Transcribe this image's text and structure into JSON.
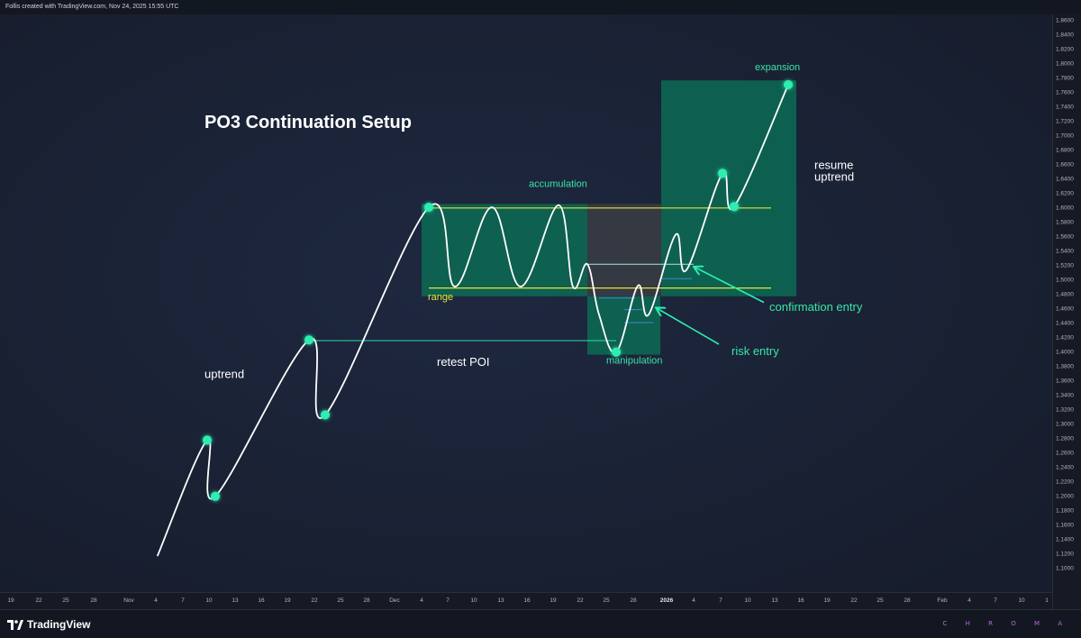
{
  "header": {
    "attribution": "Follis created with TradingView.com, Nov 24, 2025 15:55 UTC"
  },
  "footer": {
    "logo_text": "TradingView",
    "watermark": "C H R O M A"
  },
  "colors": {
    "background": "#1b2336",
    "line": "#ffffff",
    "accent": "#2dedb0",
    "zone_fill": "#0b6e55",
    "range_line": "#e6e632",
    "label_green": "#39e6a8",
    "label_white": "#ffffff"
  },
  "chart_data": {
    "type": "line",
    "title": "PO3 Continuation Setup",
    "y_axis": {
      "ticks": [
        "1.8600",
        "1.8400",
        "1.8200",
        "1.8000",
        "1.7800",
        "1.7600",
        "1.7400",
        "1.7200",
        "1.7000",
        "1.6800",
        "1.6600",
        "1.6400",
        "1.6200",
        "1.6000",
        "1.5800",
        "1.5600",
        "1.5400",
        "1.5200",
        "1.5000",
        "1.4800",
        "1.4600",
        "1.4400",
        "1.4200",
        "1.4000",
        "1.3800",
        "1.3600",
        "1.3400",
        "1.3200",
        "1.3000",
        "1.2800",
        "1.2600",
        "1.2400",
        "1.2200",
        "1.2000",
        "1.1800",
        "1.1600",
        "1.1400",
        "1.1200",
        "1.1000"
      ],
      "range": [
        1.1,
        1.86
      ]
    },
    "x_axis": {
      "ticks": [
        {
          "label": "19",
          "x": 12
        },
        {
          "label": "22",
          "x": 43
        },
        {
          "label": "25",
          "x": 73
        },
        {
          "label": "28",
          "x": 104
        },
        {
          "label": "Nov",
          "x": 143
        },
        {
          "label": "4",
          "x": 173
        },
        {
          "label": "7",
          "x": 203
        },
        {
          "label": "10",
          "x": 232
        },
        {
          "label": "13",
          "x": 261
        },
        {
          "label": "16",
          "x": 290
        },
        {
          "label": "19",
          "x": 319
        },
        {
          "label": "22",
          "x": 349
        },
        {
          "label": "25",
          "x": 378
        },
        {
          "label": "28",
          "x": 407
        },
        {
          "label": "Dec",
          "x": 438
        },
        {
          "label": "4",
          "x": 468
        },
        {
          "label": "7",
          "x": 497
        },
        {
          "label": "10",
          "x": 526
        },
        {
          "label": "13",
          "x": 556
        },
        {
          "label": "16",
          "x": 585
        },
        {
          "label": "19",
          "x": 614
        },
        {
          "label": "22",
          "x": 644
        },
        {
          "label": "25",
          "x": 673
        },
        {
          "label": "28",
          "x": 703
        },
        {
          "label": "2026",
          "x": 740,
          "bold": true
        },
        {
          "label": "4",
          "x": 770
        },
        {
          "label": "7",
          "x": 800
        },
        {
          "label": "10",
          "x": 830
        },
        {
          "label": "13",
          "x": 860
        },
        {
          "label": "16",
          "x": 889
        },
        {
          "label": "19",
          "x": 918
        },
        {
          "label": "22",
          "x": 948
        },
        {
          "label": "25",
          "x": 977
        },
        {
          "label": "28",
          "x": 1007
        },
        {
          "label": "Feb",
          "x": 1046
        },
        {
          "label": "4",
          "x": 1076
        },
        {
          "label": "7",
          "x": 1105
        },
        {
          "label": "10",
          "x": 1134
        },
        {
          "label": "1",
          "x": 1162
        }
      ]
    },
    "price_path": [
      [
        175,
        1.117
      ],
      [
        230,
        1.277
      ],
      [
        239,
        1.199
      ],
      [
        343,
        1.416
      ],
      [
        361,
        1.312
      ],
      [
        476,
        1.6
      ],
      [
        505,
        1.49
      ],
      [
        546,
        1.6
      ],
      [
        578,
        1.49
      ],
      [
        620,
        1.603
      ],
      [
        636,
        1.49
      ],
      [
        652,
        1.521
      ],
      [
        665,
        1.451
      ],
      [
        684,
        1.399
      ],
      [
        708,
        1.491
      ],
      [
        720,
        1.451
      ],
      [
        750,
        1.562
      ],
      [
        762,
        1.513
      ],
      [
        802,
        1.647
      ],
      [
        815,
        1.601
      ],
      [
        875,
        1.77
      ]
    ],
    "key_points": [
      {
        "x": 230,
        "y": 1.277
      },
      {
        "x": 239,
        "y": 1.199
      },
      {
        "x": 343,
        "y": 1.416
      },
      {
        "x": 361,
        "y": 1.312
      },
      {
        "x": 476,
        "y": 1.6
      },
      {
        "x": 684,
        "y": 1.399
      },
      {
        "x": 802,
        "y": 1.647
      },
      {
        "x": 815,
        "y": 1.601
      },
      {
        "x": 875,
        "y": 1.77
      }
    ],
    "zones": [
      {
        "name": "accumulation",
        "x1": 468,
        "x2": 652,
        "y1": 1.6045,
        "y2": 1.4765,
        "shade": "green"
      },
      {
        "name": "consolidation",
        "x1": 652,
        "x2": 734,
        "y1": 1.6045,
        "y2": 1.4765,
        "shade": "gray"
      },
      {
        "name": "manipulation",
        "x1": 652,
        "x2": 733,
        "y1": 1.4765,
        "y2": 1.3955,
        "shade": "green"
      },
      {
        "name": "expansion",
        "x1": 734,
        "x2": 884,
        "y1": 1.776,
        "y2": 1.4765,
        "shade": "green"
      }
    ],
    "range_lines": [
      {
        "x1": 476,
        "x2": 856,
        "y": 1.599
      },
      {
        "x1": 476,
        "x2": 856,
        "y": 1.488
      }
    ],
    "retest_poi_line": {
      "x1": 343,
      "x2": 684,
      "y": 1.415
    },
    "entry_lines": [
      {
        "x1": 652,
        "x2": 770,
        "y": 1.521
      },
      {
        "x1": 735,
        "x2": 768,
        "y": 1.501
      },
      {
        "x1": 665,
        "x2": 705,
        "y": 1.474
      },
      {
        "x1": 693,
        "x2": 713,
        "y": 1.458
      },
      {
        "x1": 693,
        "x2": 725,
        "y": 1.44
      }
    ],
    "arrows": [
      {
        "name": "confirmation-arrow",
        "from": [
          848,
          1.468
        ],
        "to": [
          771,
          1.517
        ]
      },
      {
        "name": "risk-arrow",
        "from": [
          798,
          1.41
        ],
        "to": [
          729,
          1.46
        ]
      }
    ],
    "annotations": [
      {
        "name": "uptrend-label",
        "text": "uptrend",
        "x": 227,
        "y": 1.363,
        "color": "white",
        "size": 13
      },
      {
        "name": "retest-poi-label",
        "text": "retest POI",
        "x": 485,
        "y": 1.38,
        "color": "white",
        "size": 13
      },
      {
        "name": "accumulation-label",
        "text": "accumulation",
        "x": 587,
        "y": 1.628,
        "color": "green",
        "size": 11
      },
      {
        "name": "range-label",
        "text": "range",
        "x": 475,
        "y": 1.471,
        "color": "yellow",
        "size": 11
      },
      {
        "name": "manipulation-label",
        "text": "manipulation",
        "x": 673,
        "y": 1.383,
        "color": "green",
        "size": 11
      },
      {
        "name": "expansion-label",
        "text": "expansion",
        "x": 838,
        "y": 1.79,
        "color": "green",
        "size": 11
      },
      {
        "name": "resume-label",
        "text": "resume",
        "x": 904,
        "y": 1.653,
        "color": "white",
        "size": 13
      },
      {
        "name": "uptrend-label-2",
        "text": "uptrend",
        "x": 904,
        "y": 1.637,
        "color": "white",
        "size": 13
      },
      {
        "name": "confirmation-entry-label",
        "text": "confirmation entry",
        "x": 854,
        "y": 1.456,
        "color": "green",
        "size": 13
      },
      {
        "name": "risk-entry-label",
        "text": "risk entry",
        "x": 812,
        "y": 1.395,
        "color": "green",
        "size": 13
      }
    ]
  }
}
